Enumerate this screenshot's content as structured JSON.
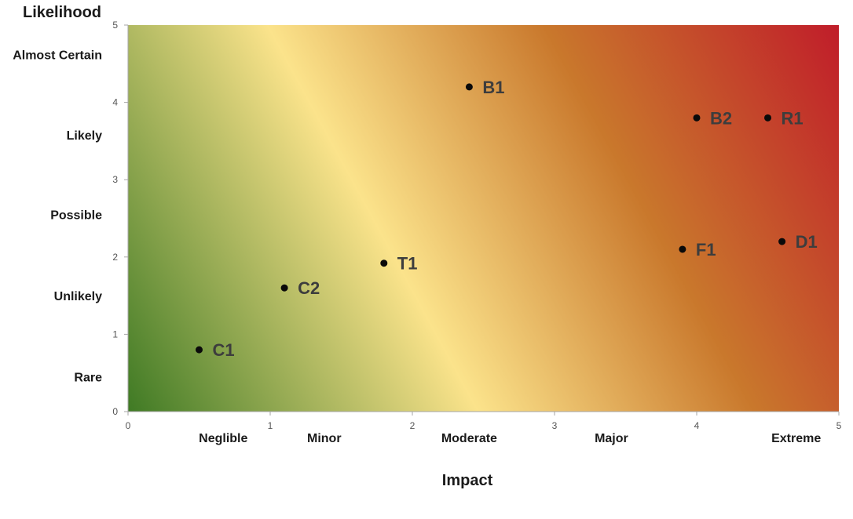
{
  "colors": {
    "low_risk": "#3f7a24",
    "mid_risk": "#fbe38b",
    "elevated_risk": "#c9782c",
    "high_risk": "#c01d2a",
    "marker": "#0a0a0a",
    "label": "#3d3d3d"
  },
  "chart_data": {
    "type": "scatter",
    "title": "",
    "xlabel": "Impact",
    "ylabel": "Likelihood",
    "xlim": [
      0,
      5
    ],
    "ylim": [
      0,
      5
    ],
    "x_ticks": [
      "0",
      "1",
      "2",
      "3",
      "4",
      "5"
    ],
    "y_ticks": [
      "0",
      "1",
      "2",
      "3",
      "4",
      "5"
    ],
    "x_categories": [
      {
        "label": "Neglible",
        "center": 0.67
      },
      {
        "label": "Minor",
        "center": 1.38
      },
      {
        "label": "Moderate",
        "center": 2.4
      },
      {
        "label": "Major",
        "center": 3.4
      },
      {
        "label": "Extreme",
        "center": 4.7
      }
    ],
    "y_categories": [
      {
        "label": "Rare",
        "center": 0.45
      },
      {
        "label": "Unlikely",
        "center": 1.5
      },
      {
        "label": "Possible",
        "center": 2.55
      },
      {
        "label": "Likely",
        "center": 3.58
      },
      {
        "label": "Almost Certain",
        "center": 4.62
      }
    ],
    "background": "diagonal gradient: green (low impact, low likelihood) through yellow to red (high impact, high likelihood)",
    "grid": false,
    "legend": "none",
    "points": [
      {
        "label": "C1",
        "x": 0.5,
        "y": 0.8
      },
      {
        "label": "C2",
        "x": 1.1,
        "y": 1.6
      },
      {
        "label": "T1",
        "x": 1.8,
        "y": 1.92
      },
      {
        "label": "B1",
        "x": 2.4,
        "y": 4.2
      },
      {
        "label": "B2",
        "x": 4.0,
        "y": 3.8
      },
      {
        "label": "R1",
        "x": 4.5,
        "y": 3.8
      },
      {
        "label": "F1",
        "x": 3.9,
        "y": 2.1
      },
      {
        "label": "D1",
        "x": 4.6,
        "y": 2.2
      }
    ]
  }
}
